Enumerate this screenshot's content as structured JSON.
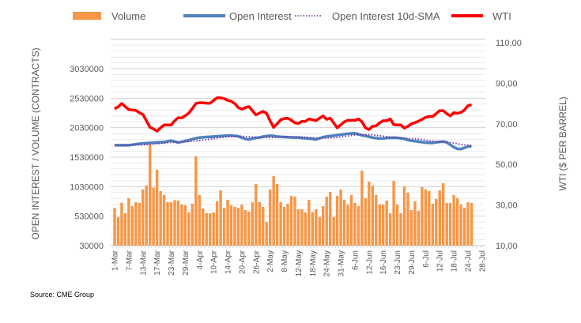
{
  "chart_data": {
    "type": "bar+line",
    "title": "",
    "legend": [
      {
        "name": "Volume",
        "color": "#F79646",
        "style": "bar"
      },
      {
        "name": "Open Interest",
        "color": "#4F81BD",
        "style": "line"
      },
      {
        "name": "Open Interest 10d-SMA",
        "color": "#7030A0",
        "style": "dotted"
      },
      {
        "name": "WTI",
        "color": "#FF0000",
        "style": "line"
      }
    ],
    "legend_position": "top",
    "ylabel_left": "OPEN INTEREST / VOLUME (CONTRACTS)",
    "ylabel_right": "WTI ($ PER BARREL)",
    "ylim_left": [
      30000,
      3530000
    ],
    "ylim_right": [
      10,
      110
    ],
    "yticks_left": [
      "30000",
      "530000",
      "1030000",
      "1530000",
      "2030000",
      "2530000",
      "3030000"
    ],
    "yticks_right": [
      "10,00",
      "30,00",
      "50,00",
      "70,00",
      "90,00",
      "110,00"
    ],
    "xtick_labels": [
      "1-Mar",
      "7-Mar",
      "13-Mar",
      "17-Mar",
      "23-Mar",
      "29-Mar",
      "4-Apr",
      "10-Apr",
      "14-Apr",
      "20-Apr",
      "26-Apr",
      "2-May",
      "8-May",
      "12-May",
      "18-May",
      "24-May",
      "31-May",
      "6-Jun",
      "12-Jun",
      "16-Jun",
      "23-Jun",
      "29-Jun",
      "6-Jul",
      "12-Jul",
      "18-Jul",
      "24-Jul",
      "28-Jul"
    ],
    "xtick_every_n_sessions": 4,
    "grid": true,
    "source": "Source: CME Group",
    "volume": [
      670000,
      513000,
      758000,
      580000,
      834000,
      700000,
      767000,
      754000,
      982000,
      1049000,
      1742000,
      1013000,
      1317000,
      955000,
      888000,
      767000,
      767000,
      803000,
      794000,
      727000,
      714000,
      593000,
      741000,
      1545000,
      888000,
      660000,
      580000,
      580000,
      593000,
      780000,
      968000,
      673000,
      808000,
      714000,
      687000,
      673000,
      727000,
      633000,
      607000,
      767000,
      1076000,
      767000,
      687000,
      432000,
      982000,
      1210000,
      1076000,
      767000,
      687000,
      741000,
      875000,
      861000,
      647000,
      647000,
      593000,
      808000,
      600000,
      647000,
      513000,
      700000,
      861000,
      941000,
      513000,
      875000,
      982000,
      808000,
      727000,
      888000,
      754000,
      700000,
      1303000,
      834000,
      1116000,
      1049000,
      888000,
      727000,
      727000,
      794000,
      580000,
      1129000,
      727000,
      580000,
      1036000,
      928000,
      633000,
      780000,
      620000,
      1022000,
      982000,
      955000,
      741000,
      821000,
      968000,
      1089000,
      754000,
      754000,
      888000,
      834000,
      727000,
      673000,
      767000,
      754000
    ],
    "open_interest": [
      1732000,
      1732000,
      1732000,
      1732000,
      1732000,
      1740000,
      1750000,
      1758000,
      1763000,
      1768000,
      1773000,
      1777000,
      1780000,
      1783000,
      1786000,
      1800000,
      1809000,
      1795000,
      1777000,
      1790000,
      1805000,
      1817000,
      1835000,
      1850000,
      1862000,
      1866000,
      1872000,
      1876000,
      1880000,
      1884000,
      1888000,
      1892000,
      1895000,
      1897000,
      1890000,
      1884000,
      1860000,
      1840000,
      1830000,
      1845000,
      1858000,
      1862000,
      1878000,
      1888000,
      1893000,
      1890000,
      1880000,
      1876000,
      1872000,
      1868000,
      1865000,
      1862000,
      1862000,
      1855000,
      1850000,
      1845000,
      1840000,
      1830000,
      1850000,
      1870000,
      1880000,
      1889000,
      1895000,
      1905000,
      1912000,
      1920000,
      1928000,
      1932000,
      1934000,
      1918000,
      1900000,
      1889000,
      1876000,
      1862000,
      1853000,
      1845000,
      1849000,
      1855000,
      1858000,
      1860000,
      1858000,
      1849000,
      1840000,
      1820000,
      1809000,
      1800000,
      1792000,
      1785000,
      1778000,
      1773000,
      1773000,
      1780000,
      1790000,
      1795000,
      1780000,
      1740000,
      1700000,
      1670000,
      1666000,
      1690000,
      1710000,
      1719000
    ],
    "sma_window": 10,
    "wti": [
      77.4,
      78.4,
      80.0,
      78.5,
      77.0,
      76.8,
      76.6,
      75.5,
      74.6,
      71.5,
      68.3,
      67.5,
      66.4,
      68.0,
      69.4,
      69.4,
      69.4,
      71.5,
      73.0,
      72.9,
      74.0,
      75.3,
      77.5,
      80.0,
      80.4,
      80.4,
      80.2,
      80.1,
      81.5,
      82.8,
      82.8,
      82.4,
      81.6,
      81.1,
      80.0,
      78.0,
      77.2,
      78.0,
      78.5,
      76.5,
      74.4,
      75.3,
      76.1,
      75.2,
      71.5,
      68.3,
      70.0,
      72.0,
      72.6,
      72.8,
      71.8,
      70.5,
      70.2,
      71.2,
      71.2,
      72.4,
      72.0,
      71.6,
      72.8,
      73.9,
      72.2,
      72.8,
      70.5,
      68.0,
      69.5,
      71.0,
      71.7,
      71.7,
      71.7,
      72.4,
      71.0,
      68.0,
      67.2,
      68.8,
      69.0,
      70.5,
      71.5,
      71.5,
      72.4,
      69.6,
      69.4,
      69.4,
      67.9,
      68.8,
      70.0,
      70.6,
      71.3,
      72.2,
      73.2,
      73.6,
      73.6,
      75.0,
      76.5,
      76.5,
      75.0,
      73.9,
      75.5,
      75.2,
      75.6,
      76.8,
      78.9,
      79.4
    ]
  }
}
